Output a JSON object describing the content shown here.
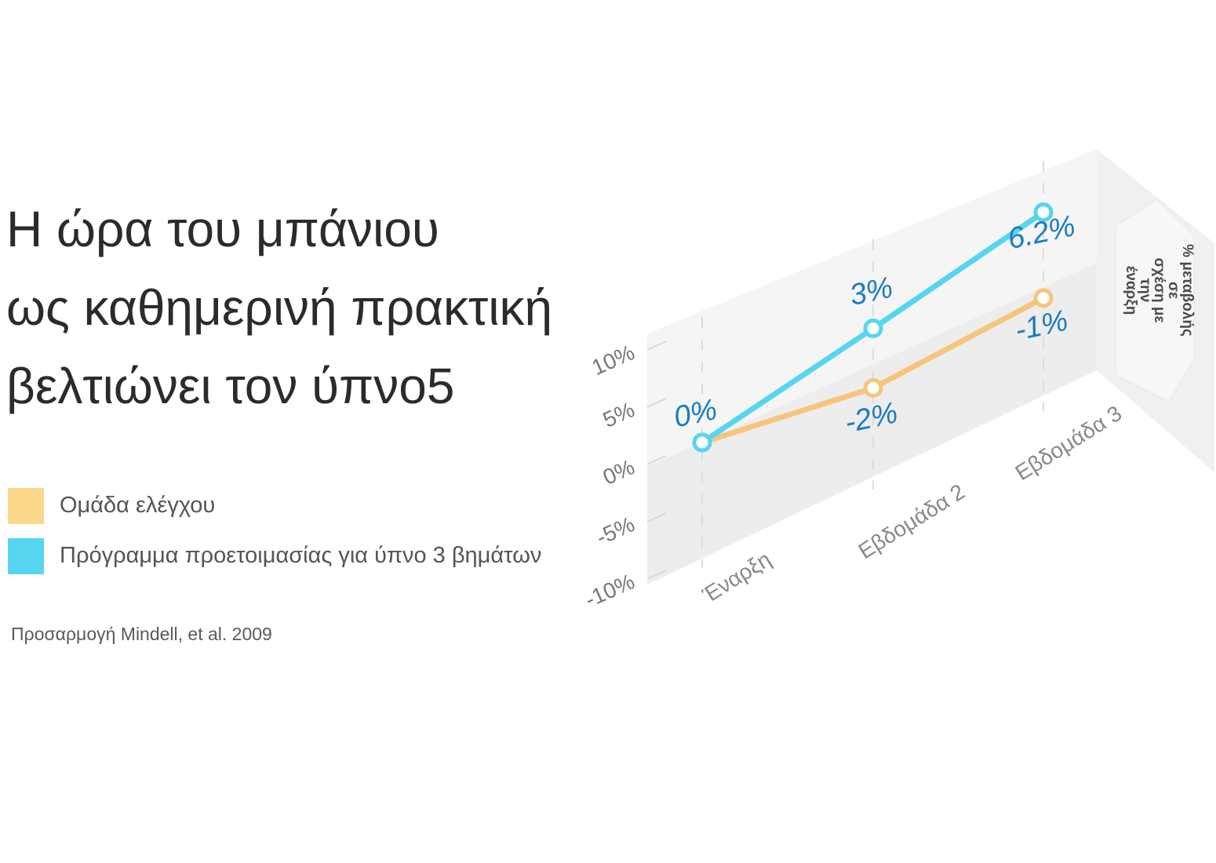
{
  "headline": [
    "Η ώρα του μπάνιου",
    "ως καθημερινή πρακτική",
    "βελτιώνει τον ύπνο5"
  ],
  "legend": [
    {
      "label": "Ομάδα ελέγχου",
      "color": "#fbd78a"
    },
    {
      "label": "Πρόγραμμα προετοιμασίας για ύπνο 3 βημάτων",
      "color": "#56d5ef"
    }
  ],
  "source": "Προσαρμογή Mindell, et al. 2009",
  "chart_data": {
    "type": "line",
    "x": [
      "Έναρξη",
      "Εβδομάδα 2",
      "Εβδομάδα 3"
    ],
    "yticks": [
      "10%",
      "5%",
      "0%",
      "-5%",
      "-10%"
    ],
    "ylim": [
      -10,
      10
    ],
    "ylabel": "% μεταβολής σε σχέση με την έναρξη",
    "series": [
      {
        "name": "Ομάδα ελέγχου",
        "color": "#f6c57c",
        "values": [
          0,
          -2,
          -1
        ],
        "labels": [
          "0%",
          "-2%",
          "-1%"
        ]
      },
      {
        "name": "Πρόγραμμα προετοιμασίας για ύπνο 3 βημάτων",
        "color": "#56d5ef",
        "values": [
          0,
          3,
          6.2
        ],
        "labels": [
          "0%",
          "3%",
          "6.2%"
        ]
      }
    ],
    "data_label_color": "#1a7cc1",
    "grid": true,
    "legend_position": "left"
  }
}
